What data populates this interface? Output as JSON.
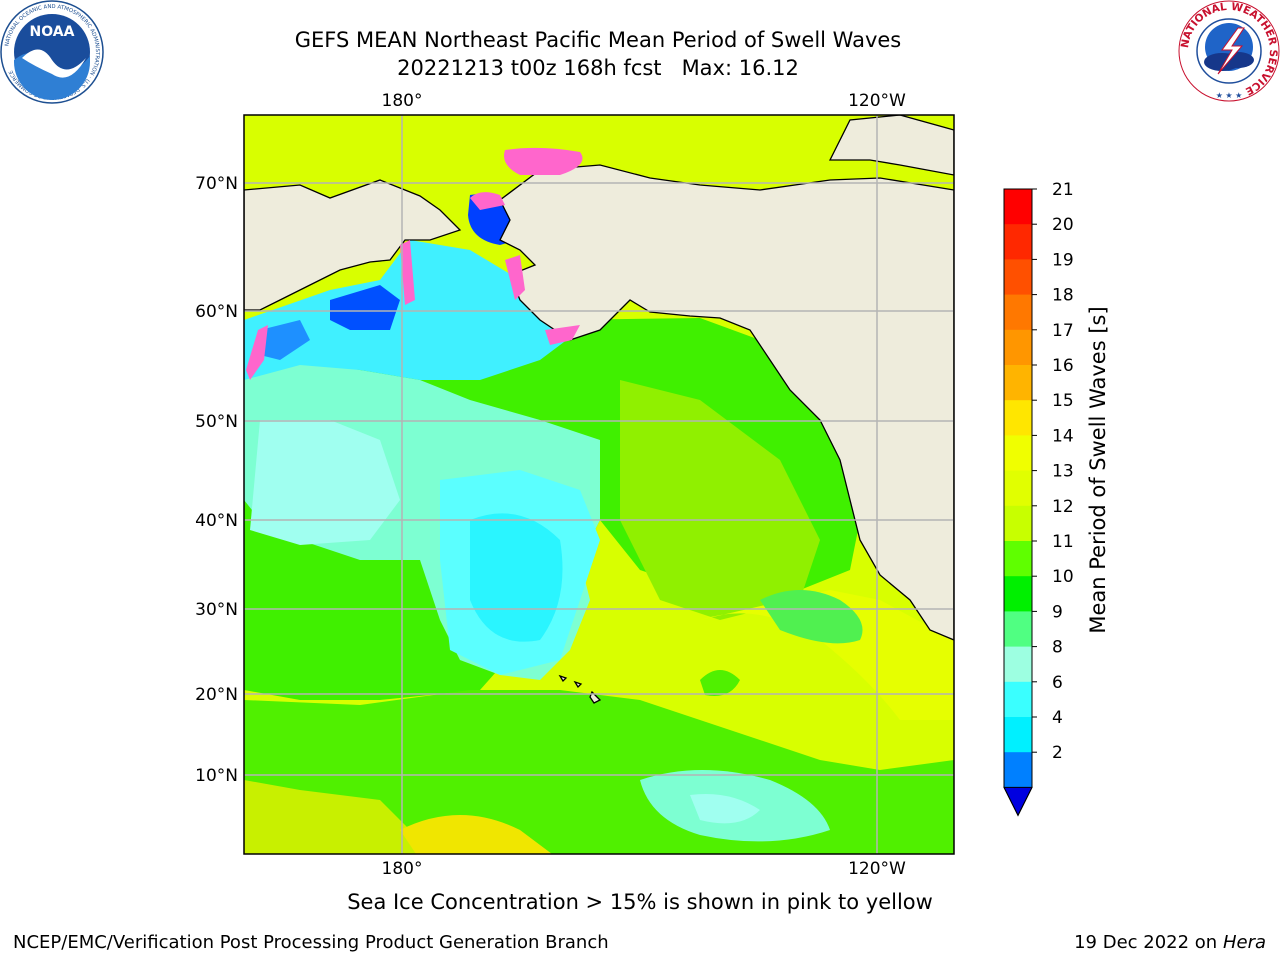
{
  "title": {
    "line1": "GEFS MEAN Northeast Pacific Mean Period of Swell Waves",
    "line2": "20221213 t00z 168h fcst   Max: 16.12"
  },
  "map": {
    "lon_labels_top": [
      "180°",
      "120°W"
    ],
    "lon_labels_bottom": [
      "180°",
      "120°W"
    ],
    "lat_labels": [
      "70°N",
      "60°N",
      "50°N",
      "40°N",
      "30°N",
      "20°N",
      "10°N"
    ]
  },
  "colorbar": {
    "title": "Mean Period of Swell Waves [s]",
    "ticks": [
      "21",
      "20",
      "19",
      "18",
      "17",
      "16",
      "15",
      "14",
      "13",
      "12",
      "11",
      "10",
      "9",
      "8",
      "6",
      "4",
      "2"
    ],
    "colors": [
      "#ff0000",
      "#ff2800",
      "#ff5000",
      "#ff7800",
      "#ff9600",
      "#ffb400",
      "#ffe600",
      "#f0ff00",
      "#e1ff00",
      "#c8ff00",
      "#5fff00",
      "#00f000",
      "#50ff82",
      "#9dffe1",
      "#3affff",
      "#00f0ff",
      "#0080ff"
    ],
    "extend_color": "#0000e0"
  },
  "colors": {
    "land": "#eeecdc",
    "grid": "#b4b4b4",
    "sea_ice": "#ff66cc"
  },
  "footnote": "Sea Ice Concentration > 15% is shown in pink to yellow",
  "credit": {
    "left": "NCEP/EMC/Verification Post Processing Product Generation Branch",
    "date": "19 Dec 2022 on",
    "machine": "Hera"
  },
  "logos": {
    "noaa_text": "NOAA",
    "noaa_ring": "NATIONAL OCEANIC AND ATMOSPHERIC ADMINISTRATION · U.S. DEPARTMENT OF COMMERCE",
    "nws_ring": "NATIONAL WEATHER SERVICE"
  }
}
